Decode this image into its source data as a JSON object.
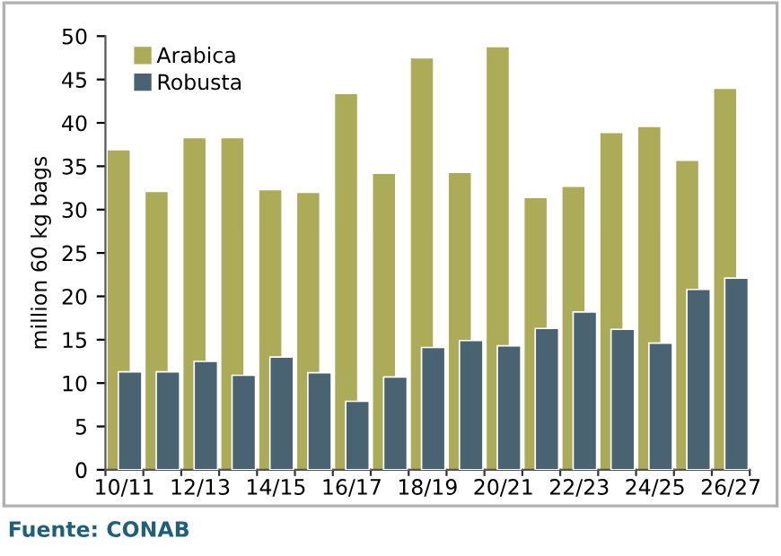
{
  "chart_data": {
    "type": "bar",
    "ylabel": "million 60 kg bags",
    "categories": [
      "10/11",
      null,
      "12/13",
      null,
      "14/15",
      null,
      "16/17",
      null,
      "18/19",
      null,
      "20/21",
      null,
      "22/23",
      null,
      "24/25",
      null,
      "26/27"
    ],
    "series": [
      {
        "name": "Arabica",
        "color": "#acab57",
        "values": [
          36.9,
          32.1,
          38.3,
          38.3,
          32.3,
          32.0,
          43.4,
          34.2,
          47.5,
          34.3,
          48.8,
          31.4,
          32.7,
          38.9,
          39.6,
          35.7,
          44.0
        ]
      },
      {
        "name": "Robusta",
        "color": "#4a6372",
        "values": [
          11.3,
          11.3,
          12.5,
          10.9,
          13.0,
          11.2,
          7.9,
          10.7,
          14.1,
          14.9,
          14.3,
          16.3,
          18.2,
          16.2,
          14.6,
          20.8,
          22.1
        ]
      }
    ],
    "ylim": [
      0,
      50
    ],
    "yticks": [
      0,
      5,
      10,
      15,
      20,
      25,
      30,
      35,
      40,
      45,
      50
    ],
    "grid": false,
    "legend": "top left",
    "annotations": [
      "Fuente: CONAB"
    ]
  }
}
